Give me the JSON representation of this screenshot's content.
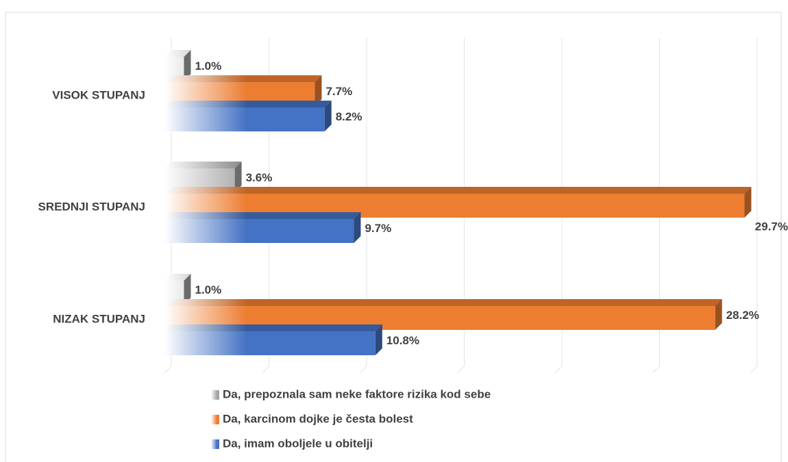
{
  "chart_data": {
    "type": "bar3d_horizontal",
    "categories": [
      "VISOK STUPANJ",
      "SREDNJI STUPANJ",
      "NIZAK STUPANJ"
    ],
    "series": [
      {
        "name": "Da, prepoznala sam neke faktore rizika kod sebe",
        "color": "#a5a5a5",
        "values": [
          1.0,
          3.6,
          1.0
        ],
        "value_labels": [
          "1.0%",
          "3.6%",
          "1.0%"
        ]
      },
      {
        "name": "Da, karcinom dojke je česta bolest",
        "color": "#ed7d31",
        "values": [
          7.7,
          29.7,
          28.2
        ],
        "value_labels": [
          "7.7%",
          "29.7%",
          "28.2%"
        ]
      },
      {
        "name": "Da, imam oboljele u obitelji",
        "color": "#4472c4",
        "values": [
          8.2,
          9.7,
          10.8
        ],
        "value_labels": [
          "8.2%",
          "9.7%",
          "10.8%"
        ]
      }
    ],
    "xlim": [
      0,
      30
    ],
    "xticks": [
      0,
      5,
      10,
      15,
      20,
      25,
      30
    ],
    "grid": true,
    "legend": "bottom"
  }
}
